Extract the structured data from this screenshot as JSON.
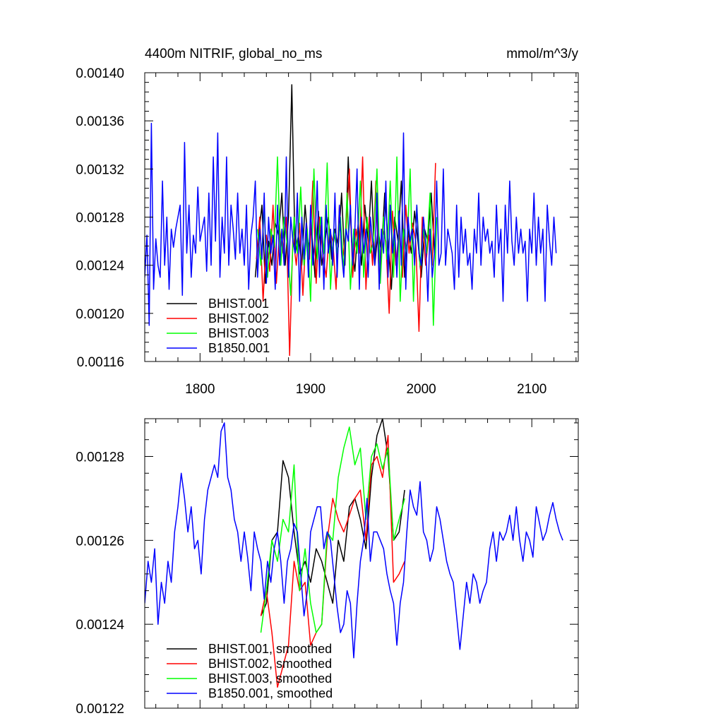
{
  "chart_data": [
    {
      "type": "line",
      "title_left": "4400m NITRIF, global_no_ms",
      "title_right": "mmol/m^3/y",
      "xlim": [
        1750,
        2142
      ],
      "ylim": [
        0.00116,
        0.0014
      ],
      "x_ticks": [
        1800,
        1900,
        2000,
        2100
      ],
      "x_tick_labels": [
        "1800",
        "1900",
        "2000",
        "2100"
      ],
      "y_ticks": [
        0.00116,
        0.0012,
        0.00124,
        0.00128,
        0.00132,
        0.00136,
        0.0014
      ],
      "y_tick_labels": [
        "0.00116",
        "0.00120",
        "0.00124",
        "0.00128",
        "0.00132",
        "0.00136",
        "0.00140"
      ],
      "legend_position": "bottom-left",
      "series": [
        {
          "name": "BHIST.001",
          "color": "#000000",
          "x_start": 1850,
          "x_step": 3,
          "values": [
            0.00123,
            0.001265,
            0.00129,
            0.001225,
            0.00126,
            0.00124,
            0.001275,
            0.001265,
            0.0013,
            0.00124,
            0.00128,
            0.00139,
            0.00125,
            0.001265,
            0.00124,
            0.00129,
            0.001255,
            0.00127,
            0.00123,
            0.001285,
            0.00124,
            0.00126,
            0.00128,
            0.001245,
            0.00127,
            0.001255,
            0.0013,
            0.00124,
            0.00133,
            0.00126,
            0.001235,
            0.001275,
            0.00124,
            0.00129,
            0.00126,
            0.00131,
            0.00124,
            0.00127,
            0.00125,
            0.0013,
            0.00126,
            0.00122,
            0.00128,
            0.00126,
            0.00131,
            0.00123,
            0.00127,
            0.00125,
            0.001285,
            0.00126,
            0.00123,
            0.00127,
            0.00126,
            0.0013,
            0.00125
          ]
        },
        {
          "name": "BHIST.002",
          "color": "#ff0000",
          "x_start": 1851,
          "x_step": 3,
          "values": [
            0.001245,
            0.00128,
            0.00121,
            0.001265,
            0.001235,
            0.00129,
            0.001225,
            0.00127,
            0.00125,
            0.00128,
            0.001165,
            0.001265,
            0.00124,
            0.001275,
            0.001215,
            0.00127,
            0.001245,
            0.00131,
            0.001225,
            0.00128,
            0.00125,
            0.00123,
            0.00127,
            0.00126,
            0.00122,
            0.00129,
            0.001245,
            0.00127,
            0.00132,
            0.00123,
            0.00127,
            0.00125,
            0.00133,
            0.00122,
            0.00128,
            0.00124,
            0.00131,
            0.001225,
            0.00127,
            0.00126,
            0.0012,
            0.001285,
            0.00124,
            0.00127,
            0.00123,
            0.00129,
            0.00125,
            0.001275,
            0.00126,
            0.001185,
            0.00128,
            0.00124,
            0.001265,
            0.00124,
            0.001325
          ]
        },
        {
          "name": "BHIST.003",
          "color": "#00ff00",
          "x_start": 1852,
          "x_step": 3,
          "values": [
            0.00127,
            0.00124,
            0.001285,
            0.00123,
            0.00127,
            0.001255,
            0.00133,
            0.00124,
            0.00128,
            0.001255,
            0.001215,
            0.00128,
            0.00125,
            0.001305,
            0.00124,
            0.00127,
            0.00121,
            0.00132,
            0.001245,
            0.00128,
            0.00125,
            0.001325,
            0.00122,
            0.00127,
            0.00125,
            0.00128,
            0.001235,
            0.0013,
            0.00122,
            0.00127,
            0.00125,
            0.00131,
            0.00123,
            0.00128,
            0.00125,
            0.00126,
            0.00132,
            0.001225,
            0.00128,
            0.001245,
            0.00131,
            0.00123,
            0.00133,
            0.00121,
            0.00127,
            0.00125,
            0.00132,
            0.00121,
            0.00129,
            0.00124,
            0.00127,
            0.00125,
            0.0013,
            0.00119,
            0.00128
          ]
        },
        {
          "name": "B1850.001",
          "color": "#0000ff",
          "x_start": 1750,
          "x_step": 2,
          "values": [
            0.00123,
            0.001265,
            0.00119,
            0.001358,
            0.00122,
            0.001262,
            0.00124,
            0.00123,
            0.00131,
            0.00124,
            0.00128,
            0.00122,
            0.00127,
            0.001255,
            0.00127,
            0.00128,
            0.00129,
            0.001215,
            0.001342,
            0.00125,
            0.00129,
            0.00123,
            0.001265,
            0.00125,
            0.001305,
            0.00126,
            0.00127,
            0.00128,
            0.001235,
            0.0013,
            0.00124,
            0.00133,
            0.00126,
            0.00135,
            0.00123,
            0.00128,
            0.00125,
            0.00133,
            0.00124,
            0.00129,
            0.00127,
            0.001245,
            0.0013,
            0.00125,
            0.00127,
            0.00124,
            0.00129,
            0.00122,
            0.001265,
            0.00128,
            0.00131,
            0.00123,
            0.00127,
            0.001245,
            0.0013,
            0.001225,
            0.00128,
            0.00125,
            0.001265,
            0.00122,
            0.00129,
            0.00124,
            0.00127,
            0.00124,
            0.00133,
            0.00123,
            0.00128,
            0.00126,
            0.00125,
            0.0013,
            0.00121,
            0.00128,
            0.001245,
            0.001275,
            0.00123,
            0.00129,
            0.00124,
            0.00126,
            0.00131,
            0.00123,
            0.00128,
            0.00122,
            0.00129,
            0.00125,
            0.00127,
            0.00124,
            0.0013,
            0.00123,
            0.00129,
            0.00125,
            0.00123,
            0.00127,
            0.00126,
            0.00129,
            0.00124,
            0.00127,
            0.00132,
            0.00122,
            0.00128,
            0.00125,
            0.00127,
            0.00123,
            0.00128,
            0.00126,
            0.00124,
            0.0013,
            0.00122,
            0.00127,
            0.00125,
            0.00131,
            0.00123,
            0.00129,
            0.00125,
            0.00127,
            0.00123,
            0.001285,
            0.00124,
            0.00135,
            0.00122,
            0.00128,
            0.00126,
            0.00127,
            0.00124,
            0.00129,
            0.00125,
            0.00124,
            0.00128,
            0.00126,
            0.00121,
            0.00127,
            0.00123,
            0.00125,
            0.00131,
            0.00124,
            0.00125,
            0.00132,
            0.00124,
            0.00127,
            0.00126,
            0.00125,
            0.00122,
            0.00129,
            0.00123,
            0.00128,
            0.00125,
            0.00127,
            0.00124,
            0.00125,
            0.00122,
            0.00127,
            0.00125,
            0.0013,
            0.00124,
            0.00128,
            0.00126,
            0.00127,
            0.00125,
            0.00126,
            0.00123,
            0.00129,
            0.00125,
            0.00127,
            0.00121,
            0.00129,
            0.00125,
            0.00131,
            0.00126,
            0.00124,
            0.00128,
            0.00125,
            0.00127,
            0.00125,
            0.00126,
            0.00121,
            0.00127,
            0.00125,
            0.0013,
            0.00124,
            0.00128,
            0.00125,
            0.00127,
            0.00121,
            0.00129,
            0.00126,
            0.00124,
            0.00128,
            0.00125
          ]
        }
      ]
    },
    {
      "type": "line",
      "xlim": [
        1750,
        2142
      ],
      "ylim": [
        0.00122,
        0.001289
      ],
      "x_ticks": [
        1800,
        1900,
        2000,
        2100
      ],
      "y_ticks": [
        0.00122,
        0.00124,
        0.00126,
        0.00128
      ],
      "y_tick_labels": [
        "0.00122",
        "0.00124",
        "0.00126",
        "0.00128"
      ],
      "legend_position": "bottom-left",
      "series": [
        {
          "name": "BHIST.001, smoothed",
          "color": "#000000",
          "x_start": 1855,
          "x_step": 5,
          "values": [
            0.001242,
            0.001245,
            0.00126,
            0.001262,
            0.001279,
            0.001275,
            0.001262,
            0.001252,
            0.001255,
            0.00125,
            0.001258,
            0.001255,
            0.00125,
            0.001245,
            0.00126,
            0.001255,
            0.001268,
            0.00127,
            0.001265,
            0.001258,
            0.001275,
            0.001285,
            0.001289,
            0.00128,
            0.00126,
            0.001262,
            0.001272
          ]
        },
        {
          "name": "BHIST.002, smoothed",
          "color": "#ff0000",
          "x_start": 1855,
          "x_step": 5,
          "values": [
            0.001242,
            0.001248,
            0.001238,
            0.001225,
            0.00123,
            0.001235,
            0.001255,
            0.001248,
            0.00125,
            0.001235,
            0.001238,
            0.00124,
            0.00126,
            0.00127,
            0.001265,
            0.001262,
            0.001266,
            0.00127,
            0.001272,
            0.00126,
            0.001278,
            0.00128,
            0.001275,
            0.001285,
            0.00125,
            0.001252,
            0.001255
          ]
        },
        {
          "name": "BHIST.003, smoothed",
          "color": "#00ff00",
          "x_start": 1855,
          "x_step": 5,
          "values": [
            0.001238,
            0.001248,
            0.00126,
            0.001255,
            0.001265,
            0.001262,
            0.001278,
            0.001248,
            0.001258,
            0.001245,
            0.001238,
            0.00124,
            0.001262,
            0.00126,
            0.001275,
            0.001282,
            0.001287,
            0.001278,
            0.001282,
            0.001265,
            0.00128,
            0.001283,
            0.001277,
            0.001282,
            0.00126,
            0.001265,
            0.00127
          ]
        },
        {
          "name": "B1850.001, smoothed",
          "color": "#0000ff",
          "x_start": 1750,
          "x_step": 3,
          "values": [
            0.001245,
            0.001255,
            0.00125,
            0.001258,
            0.00124,
            0.00125,
            0.001245,
            0.001255,
            0.00125,
            0.001262,
            0.001268,
            0.001276,
            0.00127,
            0.001262,
            0.001268,
            0.001258,
            0.00126,
            0.001252,
            0.001265,
            0.001272,
            0.001275,
            0.001278,
            0.001275,
            0.001286,
            0.001288,
            0.001275,
            0.001272,
            0.001265,
            0.001262,
            0.001255,
            0.001262,
            0.001256,
            0.001248,
            0.001262,
            0.001258,
            0.001255,
            0.001246,
            0.001255,
            0.00125,
            0.001258,
            0.001262,
            0.001255,
            0.001245,
            0.001255,
            0.001258,
            0.001264,
            0.001262,
            0.001252,
            0.001242,
            0.001248,
            0.001262,
            0.001265,
            0.001268,
            0.001268,
            0.001258,
            0.001262,
            0.00126,
            0.001252,
            0.001244,
            0.001238,
            0.00124,
            0.001248,
            0.001245,
            0.001232,
            0.001245,
            0.001255,
            0.00126,
            0.00127,
            0.001255,
            0.001262,
            0.001262,
            0.00126,
            0.001258,
            0.001252,
            0.001248,
            0.001245,
            0.001235,
            0.001245,
            0.00125,
            0.001262,
            0.001272,
            0.001268,
            0.001266,
            0.001274,
            0.001262,
            0.00126,
            0.001255,
            0.001258,
            0.001268,
            0.001265,
            0.00126,
            0.001255,
            0.001252,
            0.00125,
            0.001242,
            0.001234,
            0.001242,
            0.00125,
            0.001245,
            0.001252,
            0.00125,
            0.001245,
            0.001248,
            0.00125,
            0.001258,
            0.001262,
            0.001255,
            0.001262,
            0.00126,
            0.001262,
            0.001266,
            0.00126,
            0.001268,
            0.00126,
            0.001255,
            0.001262,
            0.00126,
            0.001256,
            0.001268,
            0.001264,
            0.00126,
            0.001262,
            0.001266,
            0.001269,
            0.001265,
            0.001262,
            0.00126
          ]
        }
      ]
    }
  ]
}
